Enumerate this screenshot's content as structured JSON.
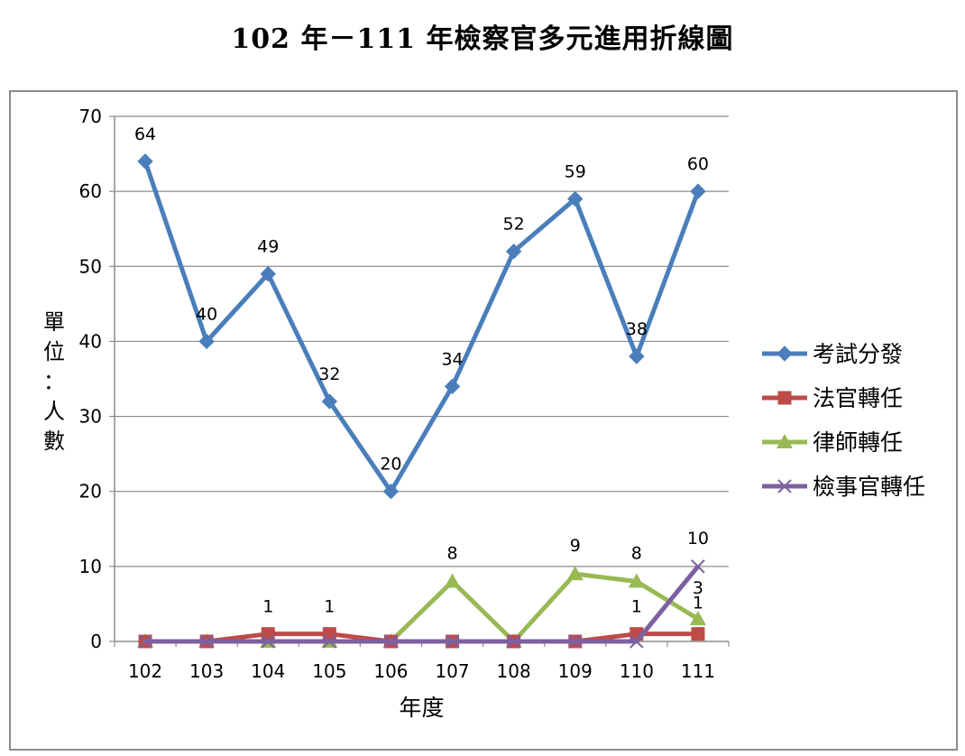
{
  "title": "102 年－111 年檢察官多元進用折線圖",
  "chart_data": {
    "type": "line",
    "categories": [
      "102",
      "103",
      "104",
      "105",
      "106",
      "107",
      "108",
      "109",
      "110",
      "111"
    ],
    "xlabel": "年度",
    "ylabel": "單位：人數",
    "ylim": [
      0,
      70
    ],
    "yticks": [
      0,
      10,
      20,
      30,
      40,
      50,
      60,
      70
    ],
    "grid": true,
    "legend_position": "right",
    "series": [
      {
        "name": "考試分發",
        "color": "#4a7ebb",
        "marker": "diamond",
        "values": [
          64,
          40,
          49,
          32,
          20,
          34,
          52,
          59,
          38,
          60
        ],
        "labels": [
          "64",
          "40",
          "49",
          "32",
          "20",
          "34",
          "52",
          "59",
          "38",
          "60"
        ]
      },
      {
        "name": "法官轉任",
        "color": "#be4b48",
        "marker": "square",
        "values": [
          0,
          0,
          1,
          1,
          0,
          0,
          0,
          0,
          1,
          1
        ],
        "labels": [
          "",
          "",
          "1",
          "1",
          "",
          "",
          "",
          "",
          "1",
          "1"
        ]
      },
      {
        "name": "律師轉任",
        "color": "#98b954",
        "marker": "triangle",
        "values": [
          0,
          0,
          0,
          0,
          0,
          8,
          0,
          9,
          8,
          3
        ],
        "labels": [
          "",
          "",
          "",
          "",
          "",
          "8",
          "",
          "9",
          "8",
          "3"
        ]
      },
      {
        "name": "檢事官轉任",
        "color": "#7d60a0",
        "marker": "x",
        "values": [
          0,
          0,
          0,
          0,
          0,
          0,
          0,
          0,
          0,
          10
        ],
        "labels": [
          "",
          "",
          "",
          "",
          "",
          "",
          "",
          "",
          "",
          "10"
        ]
      }
    ]
  }
}
